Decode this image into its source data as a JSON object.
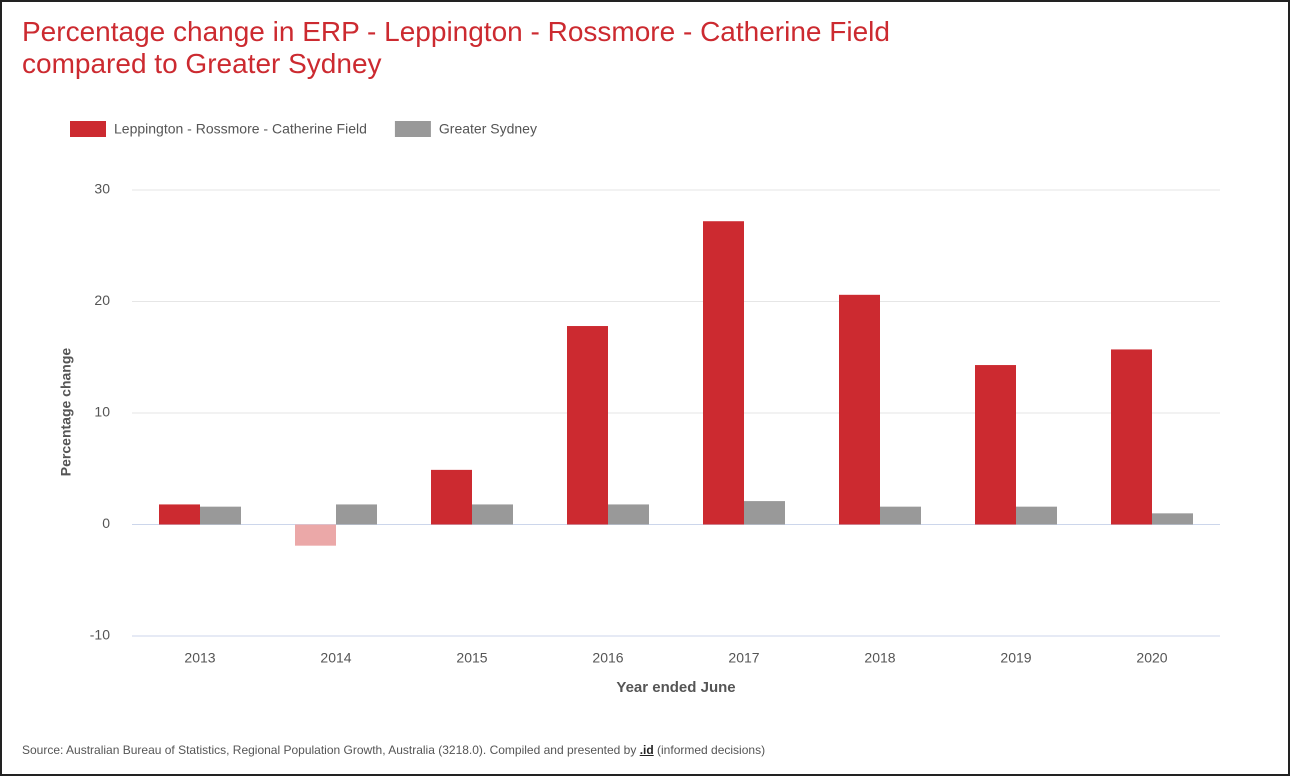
{
  "chart_data": {
    "type": "bar",
    "title": "Percentage change in ERP - Leppington - Rossmore - Catherine Field compared to Greater Sydney",
    "categories": [
      "2013",
      "2014",
      "2015",
      "2016",
      "2017",
      "2018",
      "2019",
      "2020"
    ],
    "series": [
      {
        "name": "Leppington - Rossmore - Catherine Field",
        "color": "#cc2a30",
        "negative_color": "#eba8a8",
        "values": [
          1.8,
          -1.9,
          4.9,
          17.8,
          27.2,
          20.6,
          14.3,
          15.7
        ]
      },
      {
        "name": "Greater Sydney",
        "color": "#999999",
        "values": [
          1.6,
          1.8,
          1.8,
          1.8,
          2.1,
          1.6,
          1.6,
          1.0
        ]
      }
    ],
    "ylim": [
      -10,
      30
    ],
    "yticks": [
      -10,
      0,
      10,
      20,
      30
    ],
    "grid": true,
    "y_label": "Percentage change",
    "x_label": "Year ended June",
    "source": "Source: Australian Bureau of Statistics, Regional Population Growth, Australia (3218.0). Compiled and presented by ",
    "source_link": ".id",
    "source_end": " (informed decisions)"
  }
}
